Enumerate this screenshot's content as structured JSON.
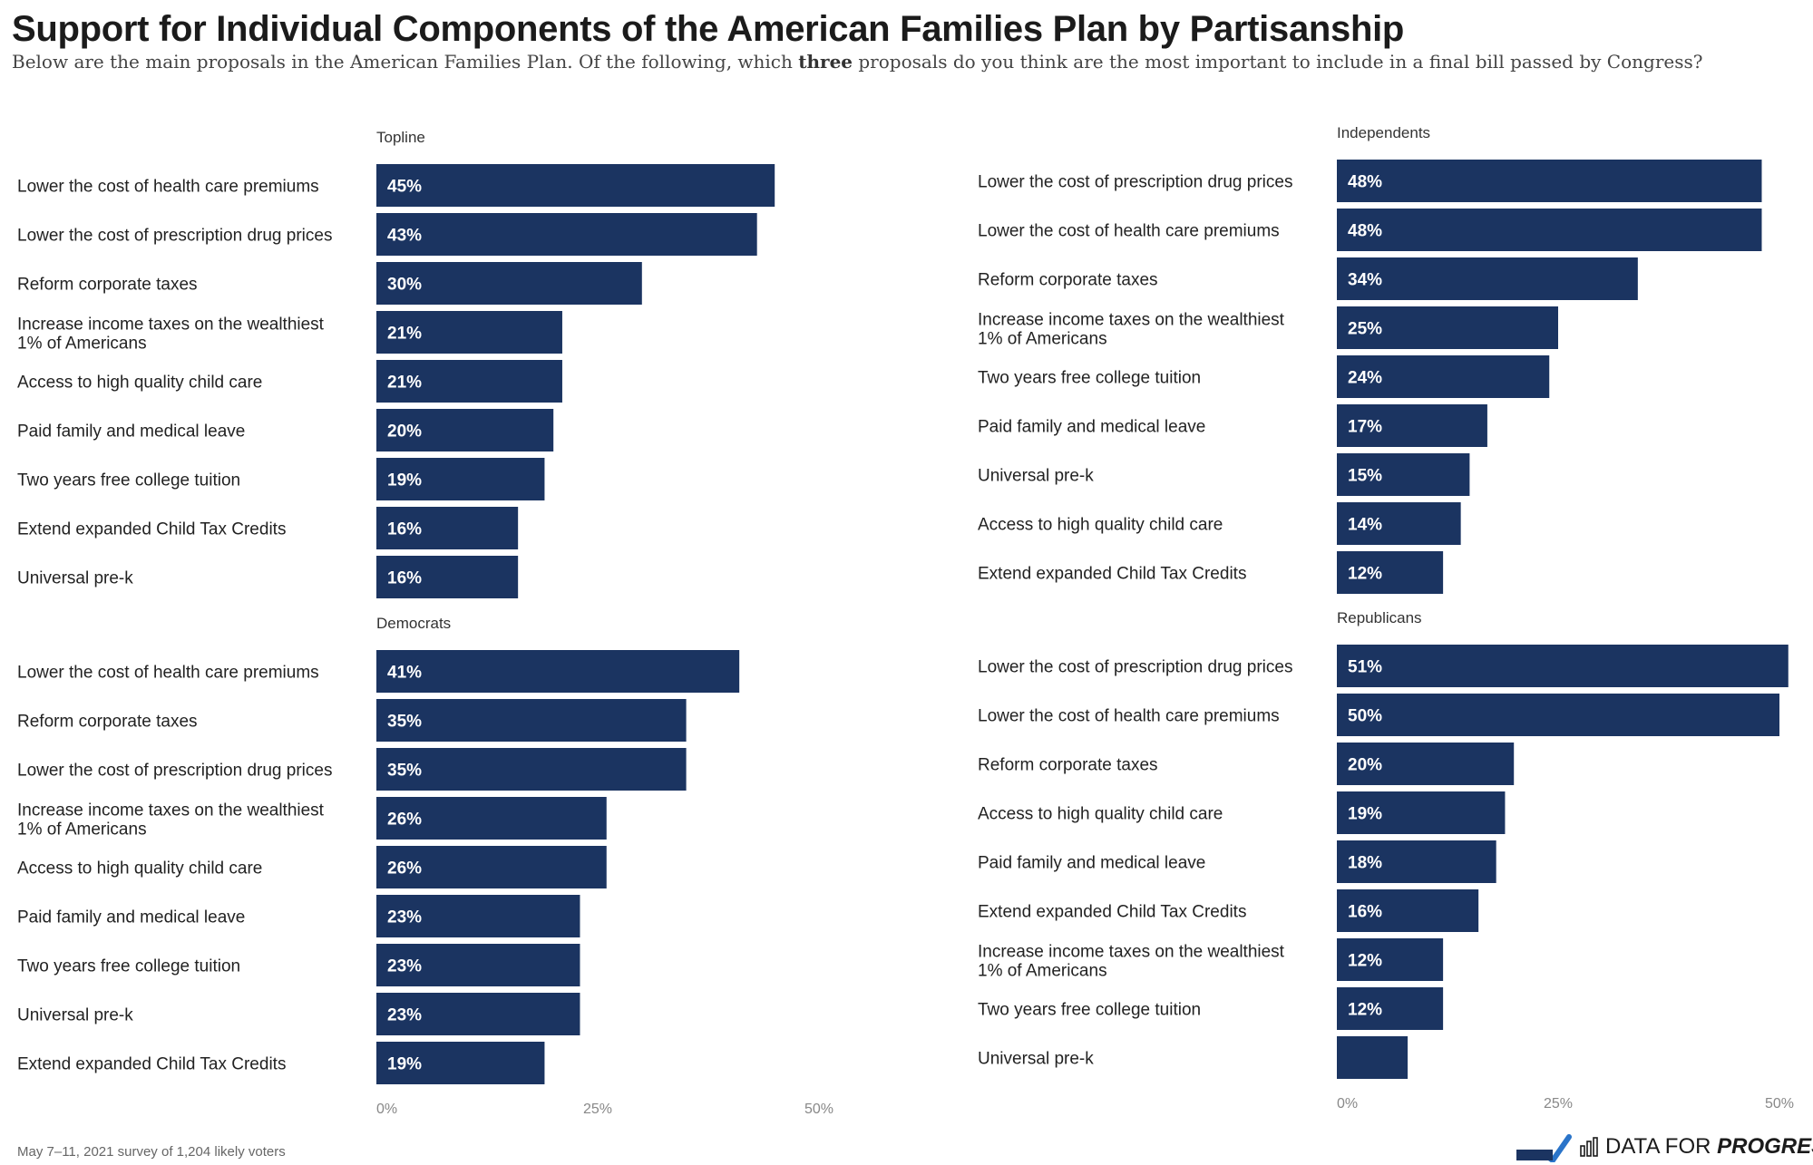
{
  "title": "Support for Individual Components of the American Families Plan by Partisanship",
  "subtitle": {
    "before": "Below are the main proposals in the American Families Plan. Of the following, which ",
    "bold": "three",
    "after": " proposals do you think are the most  important to include in a final bill passed by Congress?"
  },
  "source_note": "May 7–11, 2021 survey of 1,204 likely voters",
  "brand": {
    "partner_icon": "vote-save-america-logo",
    "data_label_1": "DATA FOR",
    "data_label_2": "PROGRESS"
  },
  "colors": {
    "bar": "#1b3461",
    "bar_label": "#ffffff",
    "text": "#222222",
    "axis": "#888888"
  },
  "chart_data": [
    {
      "type": "bar",
      "orientation": "horizontal",
      "title": "Topline",
      "categories": [
        "Lower the cost of health care premiums",
        "Lower the cost of prescription drug prices",
        "Reform corporate taxes",
        "Increase income taxes on the wealthiest 1% of Americans",
        "Access to high quality child care",
        "Paid family and medical leave",
        "Two years free college tuition",
        "Extend expanded Child Tax Credits",
        "Universal pre-k"
      ],
      "values": [
        45,
        43,
        30,
        21,
        21,
        20,
        19,
        16,
        16
      ],
      "labels": [
        "45%",
        "43%",
        "30%",
        "21%",
        "21%",
        "20%",
        "19%",
        "16%",
        "16%"
      ],
      "xlim": [
        0,
        50
      ]
    },
    {
      "type": "bar",
      "orientation": "horizontal",
      "title": "Independents",
      "categories": [
        "Lower the cost of prescription drug prices",
        "Lower the cost of health care premiums",
        "Reform corporate taxes",
        "Increase income taxes on the wealthiest 1% of Americans",
        "Two years free college tuition",
        "Paid family and medical leave",
        "Universal pre-k",
        "Access to high quality child care",
        "Extend expanded Child Tax Credits"
      ],
      "values": [
        48,
        48,
        34,
        25,
        24,
        17,
        15,
        14,
        12
      ],
      "labels": [
        "48%",
        "48%",
        "34%",
        "25%",
        "24%",
        "17%",
        "15%",
        "14%",
        "12%"
      ],
      "xlim": [
        0,
        50
      ]
    },
    {
      "type": "bar",
      "orientation": "horizontal",
      "title": "Democrats",
      "categories": [
        "Lower the cost of health care premiums",
        "Reform corporate taxes",
        "Lower the cost of prescription drug prices",
        "Increase income taxes on the wealthiest 1% of Americans",
        "Access to high quality child care",
        "Paid family and medical leave",
        "Two years free college tuition",
        "Universal pre-k",
        "Extend expanded Child Tax Credits"
      ],
      "values": [
        41,
        35,
        35,
        26,
        26,
        23,
        23,
        23,
        19
      ],
      "labels": [
        "41%",
        "35%",
        "35%",
        "26%",
        "26%",
        "23%",
        "23%",
        "23%",
        "19%"
      ],
      "xlim": [
        0,
        50
      ],
      "xticks": [
        "0%",
        "25%",
        "50%"
      ]
    },
    {
      "type": "bar",
      "orientation": "horizontal",
      "title": "Republicans",
      "categories": [
        "Lower the cost of prescription drug prices",
        "Lower the cost of health care premiums",
        "Reform corporate taxes",
        "Access to high quality child care",
        "Paid family and medical leave",
        "Extend expanded Child Tax Credits",
        "Increase income taxes on the wealthiest 1% of Americans",
        "Two years free college tuition",
        "Universal pre-k"
      ],
      "values": [
        51,
        50,
        20,
        19,
        18,
        16,
        12,
        12,
        8
      ],
      "labels": [
        "51%",
        "50%",
        "20%",
        "19%",
        "18%",
        "16%",
        "12%",
        "12%",
        ""
      ],
      "xlim": [
        0,
        50
      ],
      "xticks": [
        "0%",
        "25%",
        "50%"
      ]
    }
  ]
}
